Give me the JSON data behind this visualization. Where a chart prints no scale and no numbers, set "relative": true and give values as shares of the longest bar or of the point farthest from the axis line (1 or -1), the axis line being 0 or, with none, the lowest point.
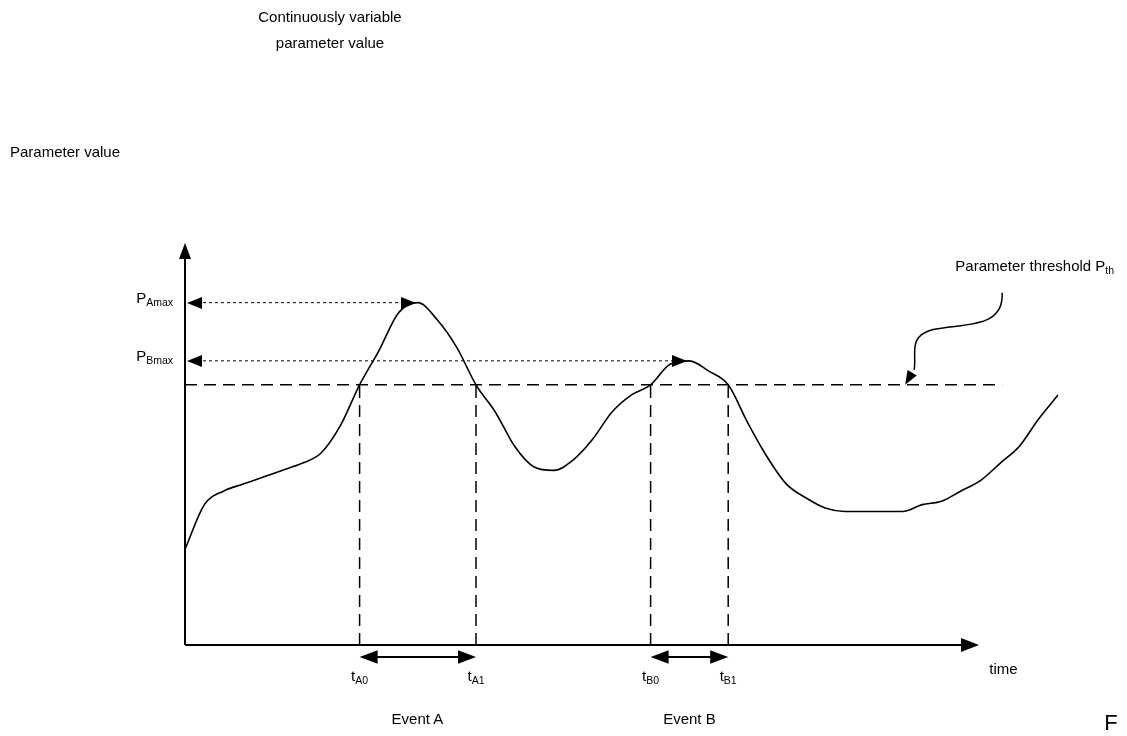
{
  "chart_data": {
    "type": "line",
    "title": "Continuously variable parameter value",
    "xlabel": "time",
    "relative": true,
    "color": "#000000",
    "line_style": "solid",
    "categories": [
      null,
      null,
      null,
      null,
      null,
      null,
      null,
      null,
      null,
      "t$_{A0}$",
      null,
      null,
      null,
      null,
      null,
      "t$_{A1}$",
      null,
      null,
      null,
      null,
      null,
      null,
      null,
      null,
      "t$_{B0}$",
      null,
      null,
      null,
      "t$_{B1}$",
      null,
      null,
      null,
      null,
      null,
      null,
      null,
      null,
      null,
      null,
      null,
      null,
      null,
      null,
      null,
      null,
      null
    ],
    "values": [
      0.28,
      0.41,
      0.45,
      0.47,
      0.49,
      0.51,
      0.53,
      0.56,
      0.64,
      0.76,
      0.86,
      0.97,
      1,
      0.95,
      0.87,
      0.76,
      0.68,
      0.58,
      0.52,
      0.51,
      0.54,
      0.6,
      0.68,
      0.73,
      0.76,
      0.82,
      0.83,
      0.8,
      0.76,
      0.65,
      0.55,
      0.47,
      0.43,
      0.4,
      0.39,
      0.39,
      0.39,
      0.39,
      0.41,
      0.42,
      0.45,
      0.48,
      0.53,
      0.58,
      0.66,
      0.73
    ],
    "ref_lines": [
      {
        "axis": "y",
        "value": 0.76,
        "line_style": "dashed"
      },
      {
        "axis": "y",
        "value": 1,
        "label": "P$_{Amax}$",
        "line_style": "dotted"
      },
      {
        "axis": "y",
        "value": 0.83,
        "label": "P$_{Bmax}$",
        "line_style": "dotted"
      },
      {
        "axis": "x",
        "value": "t$_{A0}$",
        "line_style": "dashed"
      },
      {
        "axis": "x",
        "value": "t$_{A1}$",
        "line_style": "dashed"
      },
      {
        "axis": "x",
        "value": "t$_{B0}$",
        "line_style": "dashed"
      },
      {
        "axis": "x",
        "value": "t$_{B1}$",
        "line_style": "dashed"
      }
    ],
    "annotations": [
      "Parameter value",
      "Event A",
      "Event B",
      "Parameter threshold P$_{th}$",
      "F"
    ],
    "legend": false
  }
}
